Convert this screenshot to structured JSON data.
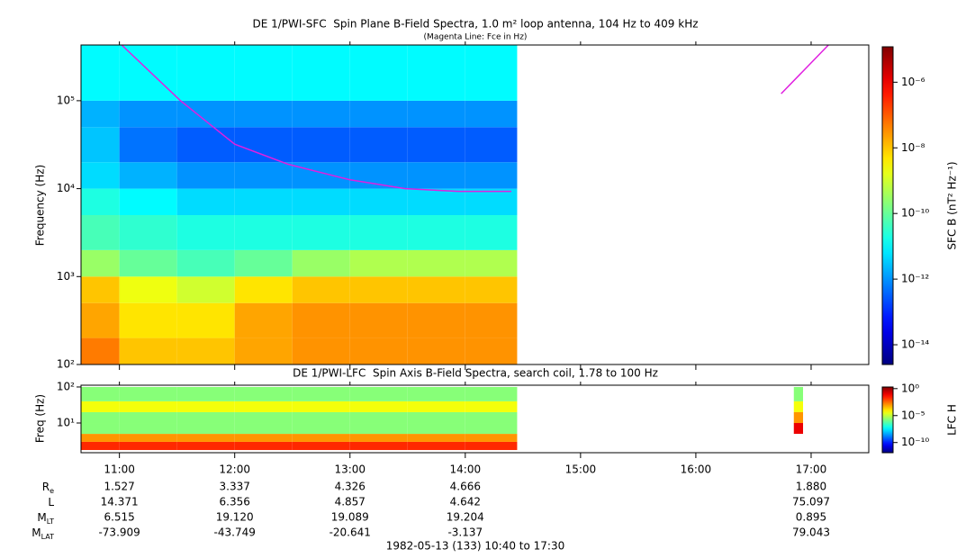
{
  "chart_data": [
    {
      "type": "heatmap",
      "title": "DE 1/PWI-SFC  Spin Plane B-Field Spectra, 1.0 m² loop antenna, 104 Hz to 409 kHz",
      "subtitle": "(Magenta Line: Fce in Hz)",
      "y_label": "Frequency (Hz)",
      "colorbar_label": "SFC B (nT² Hz⁻¹)",
      "xlim": [
        10.667,
        17.5
      ],
      "ylim": [
        100,
        430000
      ],
      "y_log": true,
      "yticks": [
        {
          "value": 100,
          "label": "10²"
        },
        {
          "value": 1000,
          "label": "10³"
        },
        {
          "value": 10000,
          "label": "10⁴"
        },
        {
          "value": 100000,
          "label": "10⁵"
        }
      ],
      "zlim": [
        2.5e-15,
        1.2e-05
      ],
      "z_log": true,
      "zticks": [
        {
          "value": 1e-14,
          "label": "10⁻¹⁴"
        },
        {
          "value": 1e-12,
          "label": "10⁻¹²"
        },
        {
          "value": 1e-10,
          "label": "10⁻¹⁰"
        },
        {
          "value": 1e-08,
          "label": "10⁻⁸"
        },
        {
          "value": 1e-06,
          "label": "10⁻⁶"
        }
      ],
      "x_edges": [
        10.667,
        11,
        11.5,
        12,
        12.5,
        13,
        13.5,
        14,
        14.45
      ],
      "y_edges": [
        100,
        200,
        500,
        1000,
        2000,
        5000,
        10000,
        20000,
        50000,
        100000,
        430000
      ],
      "z": [
        [
          5e-08,
          1e-08,
          1e-08,
          2e-08,
          3e-08,
          3e-08,
          3e-08,
          3e-08
        ],
        [
          2e-08,
          5e-09,
          5e-09,
          2e-08,
          3e-08,
          3e-08,
          3e-08,
          3e-08
        ],
        [
          1e-08,
          2e-09,
          1e-09,
          5e-09,
          1e-08,
          1e-08,
          1e-08,
          1e-08
        ],
        [
          3e-10,
          1e-10,
          5e-11,
          1e-10,
          3e-10,
          5e-10,
          5e-10,
          5e-10
        ],
        [
          5e-11,
          3e-11,
          2e-11,
          2e-11,
          2e-11,
          2e-11,
          2e-11,
          2e-11
        ],
        [
          2e-11,
          1e-11,
          5e-12,
          5e-12,
          5e-12,
          5e-12,
          5e-12,
          5e-12
        ],
        [
          5e-12,
          2e-12,
          1e-12,
          1e-12,
          1e-12,
          1e-12,
          1e-12,
          1e-12
        ],
        [
          3e-12,
          5e-13,
          3e-13,
          3e-13,
          3e-13,
          3e-13,
          3e-13,
          3e-13
        ],
        [
          2e-12,
          1e-12,
          1e-12,
          1e-12,
          1e-12,
          1e-12,
          1e-12,
          1e-12
        ],
        [
          1e-11,
          1e-11,
          1e-11,
          1e-11,
          1e-11,
          1e-11,
          1e-11,
          1e-11
        ]
      ],
      "series": [
        {
          "color": "#e020e0",
          "x": [
            11.02,
            11.53,
            12.0,
            12.46,
            13.0,
            13.48,
            13.95,
            14.4,
            15.5,
            16.74,
            17.15
          ],
          "values": [
            430000,
            100000,
            32000,
            19000,
            12600,
            10000,
            9300,
            9300,
            null,
            120000,
            430000
          ]
        }
      ]
    },
    {
      "type": "heatmap",
      "title": "DE 1/PWI-LFC  Spin Axis B-Field Spectra, search coil, 1.78 to 100 Hz",
      "y_label": "Freq (Hz)",
      "colorbar_label": "LFC H",
      "xlim": [
        10.667,
        17.5
      ],
      "xticks": [
        {
          "value": 11,
          "label": "11:00"
        },
        {
          "value": 12,
          "label": "12:00"
        },
        {
          "value": 13,
          "label": "13:00"
        },
        {
          "value": 14,
          "label": "14:00"
        },
        {
          "value": 15,
          "label": "15:00"
        },
        {
          "value": 16,
          "label": "16:00"
        },
        {
          "value": 17,
          "label": "17:00"
        }
      ],
      "ylim": [
        1.5,
        112
      ],
      "y_log": true,
      "yticks": [
        {
          "value": 10,
          "label": "10¹"
        },
        {
          "value": 100,
          "label": "10²"
        }
      ],
      "zlim": [
        1.3e-12,
        2
      ],
      "z_log": true,
      "zticks": [
        {
          "value": 1e-10,
          "label": "10⁻¹⁰"
        },
        {
          "value": 1e-05,
          "label": "10⁻⁵"
        },
        {
          "value": 1,
          "label": "10⁰"
        }
      ],
      "x_edges": [
        10.667,
        11,
        11.5,
        12,
        12.5,
        13,
        13.5,
        14,
        14.45,
        16.85,
        16.93
      ],
      "y_edges": [
        1.78,
        3,
        5,
        10,
        20,
        40,
        100
      ],
      "z": [
        [
          0.02,
          0.02,
          0.02,
          0.02,
          0.02,
          0.02,
          0.02,
          0.02,
          null,
          null
        ],
        [
          0.001,
          0.001,
          0.001,
          0.001,
          0.001,
          0.001,
          0.001,
          0.001,
          null,
          null
        ],
        [
          2e-06,
          2e-06,
          2e-06,
          2e-06,
          2e-06,
          2e-06,
          2e-06,
          2e-06,
          null,
          0.1
        ],
        [
          2e-06,
          2e-06,
          2e-06,
          2e-06,
          2e-06,
          2e-06,
          2e-06,
          2e-06,
          null,
          0.001
        ],
        [
          4e-05,
          4e-05,
          4e-05,
          4e-05,
          4e-05,
          4e-05,
          4e-05,
          4e-05,
          null,
          4e-05
        ],
        [
          2e-06,
          2e-06,
          2e-06,
          2e-06,
          2e-06,
          2e-06,
          2e-06,
          2e-06,
          null,
          2e-06
        ]
      ]
    }
  ],
  "ephemeris": {
    "x": [
      11,
      12,
      13,
      14,
      17
    ],
    "rows": [
      {
        "label": "R",
        "sub": "e",
        "values": [
          "1.527",
          "3.337",
          "4.326",
          "4.666",
          "1.880"
        ]
      },
      {
        "label": "L",
        "values": [
          "14.371",
          "6.356",
          "4.857",
          "4.642",
          "75.097"
        ]
      },
      {
        "label": "M",
        "sub": "LT",
        "values": [
          "6.515",
          "19.120",
          "19.089",
          "19.204",
          "0.895"
        ]
      },
      {
        "label": "M",
        "sub": "LAT",
        "values": [
          "-73.909",
          "-43.749",
          "-20.641",
          "-3.137",
          "79.043"
        ]
      }
    ]
  },
  "footer": "1982-05-13 (133) 10:40 to 17:30"
}
